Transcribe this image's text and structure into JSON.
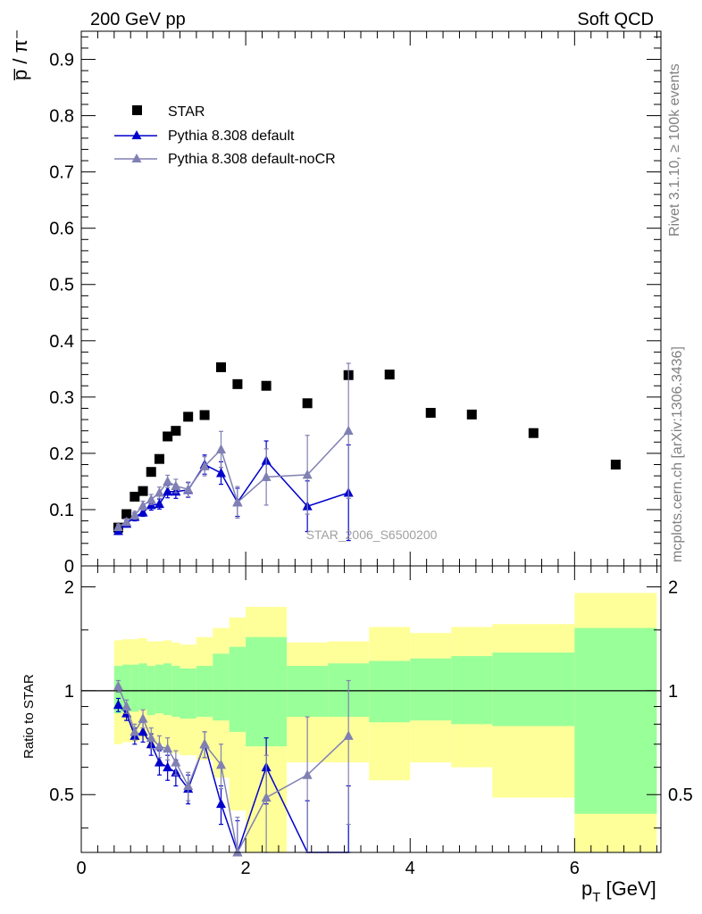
{
  "header": {
    "left_title": "200 GeV pp",
    "right_title": "Soft QCD"
  },
  "side": {
    "rivet_label": "Rivet 3.1.10, ≥ 100k events",
    "mcplots_label": "mcplots.cern.ch [arXiv:1306.3436]"
  },
  "watermark": "STAR_2006_S6500200",
  "colors": {
    "star": "#000000",
    "default": "#0000cc",
    "nocr": "#8080b3",
    "band_inner": "#99ff99",
    "band_outer": "#ffff99"
  },
  "chart_data": [
    {
      "type": "scatter",
      "panel": "main",
      "ylabel": "p̅ / π⁻",
      "xlim": [
        0,
        7.05
      ],
      "ylim": [
        0,
        0.95
      ],
      "yticks": [
        0.1,
        0.2,
        0.3,
        0.4,
        0.5,
        0.6,
        0.7,
        0.8,
        0.9
      ],
      "yticklabels": [
        "0.1",
        "0.2",
        "0.3",
        "0.4",
        "0.5",
        "0.6",
        "0.7",
        "0.8",
        "0.9"
      ],
      "bottom_label": "0",
      "legend_position": "top-left",
      "series": [
        {
          "name": "STAR",
          "marker": "square",
          "x": [
            0.45,
            0.55,
            0.65,
            0.75,
            0.85,
            0.95,
            1.05,
            1.15,
            1.3,
            1.5,
            1.7,
            1.9,
            2.25,
            2.75,
            3.25,
            3.75,
            4.25,
            4.75,
            5.5,
            6.5
          ],
          "y": [
            0.068,
            0.092,
            0.123,
            0.133,
            0.167,
            0.19,
            0.23,
            0.24,
            0.265,
            0.268,
            0.353,
            0.323,
            0.32,
            0.289,
            0.339,
            0.34,
            0.272,
            0.269,
            0.236,
            0.18
          ]
        },
        {
          "name": "Pythia 8.308 default",
          "marker": "triangle",
          "x": [
            0.45,
            0.55,
            0.65,
            0.75,
            0.85,
            0.95,
            1.05,
            1.15,
            1.3,
            1.5,
            1.7,
            1.9,
            2.25,
            2.75,
            3.25
          ],
          "y": [
            0.062,
            0.075,
            0.087,
            0.095,
            0.108,
            0.11,
            0.132,
            0.132,
            0.135,
            0.18,
            0.165,
            0.113,
            0.187,
            0.106,
            0.13
          ],
          "err": [
            0.006,
            0.006,
            0.007,
            0.007,
            0.009,
            0.009,
            0.011,
            0.012,
            0.013,
            0.017,
            0.02,
            0.025,
            0.035,
            0.045,
            0.085
          ]
        },
        {
          "name": "Pythia 8.308 default-noCR",
          "marker": "triangle",
          "x": [
            0.45,
            0.55,
            0.65,
            0.75,
            0.85,
            0.95,
            1.05,
            1.15,
            1.3,
            1.5,
            1.7,
            1.9,
            2.25,
            2.75,
            3.25
          ],
          "y": [
            0.069,
            0.078,
            0.09,
            0.107,
            0.118,
            0.13,
            0.15,
            0.142,
            0.136,
            0.177,
            0.207,
            0.113,
            0.158,
            0.162,
            0.24
          ],
          "err": [
            0.005,
            0.006,
            0.007,
            0.008,
            0.009,
            0.01,
            0.011,
            0.012,
            0.013,
            0.017,
            0.032,
            0.028,
            0.05,
            0.07,
            0.12
          ]
        }
      ]
    },
    {
      "type": "scatter",
      "panel": "ratio",
      "ylabel": "Ratio to STAR",
      "xlabel": "p_T [GeV]",
      "xlim": [
        0,
        7.05
      ],
      "ylim": [
        0.34,
        2.3
      ],
      "yticks": [
        0.5,
        1,
        2
      ],
      "yticklabels": [
        "0.5",
        "1",
        "2"
      ],
      "xticks": [
        0,
        2,
        4,
        6
      ],
      "xticklabels": [
        "0",
        "2",
        "4",
        "6"
      ],
      "bands": {
        "edges": [
          0.4,
          0.5,
          0.6,
          0.7,
          0.8,
          0.9,
          1.0,
          1.1,
          1.2,
          1.4,
          1.6,
          1.8,
          2.0,
          2.5,
          3.0,
          3.5,
          4.0,
          4.5,
          5.0,
          6.0,
          7.0
        ],
        "inner_lo": [
          0.86,
          0.87,
          0.87,
          0.88,
          0.85,
          0.86,
          0.85,
          0.84,
          0.83,
          0.84,
          0.82,
          0.76,
          0.69,
          0.84,
          0.84,
          0.81,
          0.82,
          0.8,
          0.79,
          0.44
        ],
        "inner_hi": [
          1.18,
          1.19,
          1.19,
          1.2,
          1.18,
          1.19,
          1.2,
          1.18,
          1.16,
          1.18,
          1.28,
          1.34,
          1.43,
          1.18,
          1.2,
          1.22,
          1.24,
          1.26,
          1.29,
          1.52
        ],
        "outer_lo": [
          0.7,
          0.71,
          0.71,
          0.72,
          0.69,
          0.7,
          0.68,
          0.66,
          0.65,
          0.63,
          0.56,
          0.45,
          0.34,
          0.62,
          0.62,
          0.55,
          0.62,
          0.6,
          0.49,
          0.32
        ],
        "outer_hi": [
          1.4,
          1.41,
          1.41,
          1.42,
          1.39,
          1.39,
          1.4,
          1.38,
          1.36,
          1.43,
          1.52,
          1.63,
          1.75,
          1.38,
          1.39,
          1.53,
          1.47,
          1.53,
          1.56,
          1.92
        ]
      },
      "series": [
        {
          "name": "Pythia 8.308 default",
          "x": [
            0.45,
            0.55,
            0.65,
            0.75,
            0.85,
            0.95,
            1.05,
            1.15,
            1.3,
            1.5,
            1.7,
            1.9,
            2.25,
            2.75,
            3.25
          ],
          "y": [
            0.91,
            0.86,
            0.74,
            0.76,
            0.7,
            0.62,
            0.6,
            0.58,
            0.52,
            0.7,
            0.47,
            0.34,
            0.6,
            0.33,
            0.33
          ],
          "err": [
            0.04,
            0.04,
            0.04,
            0.05,
            0.05,
            0.05,
            0.05,
            0.05,
            0.05,
            0.06,
            0.06,
            0.08,
            0.13,
            0.15,
            0.2
          ]
        },
        {
          "name": "Pythia 8.308 default-noCR",
          "x": [
            0.45,
            0.55,
            0.65,
            0.75,
            0.85,
            0.95,
            1.05,
            1.15,
            1.3,
            1.5,
            1.7,
            1.9,
            2.25,
            2.75,
            3.25
          ],
          "y": [
            1.03,
            0.9,
            0.76,
            0.83,
            0.73,
            0.69,
            0.68,
            0.62,
            0.53,
            0.7,
            0.61,
            0.34,
            0.49,
            0.57,
            0.74
          ],
          "err": [
            0.04,
            0.04,
            0.04,
            0.05,
            0.05,
            0.05,
            0.05,
            0.05,
            0.05,
            0.06,
            0.09,
            0.09,
            0.16,
            0.27,
            0.33
          ]
        }
      ]
    }
  ]
}
